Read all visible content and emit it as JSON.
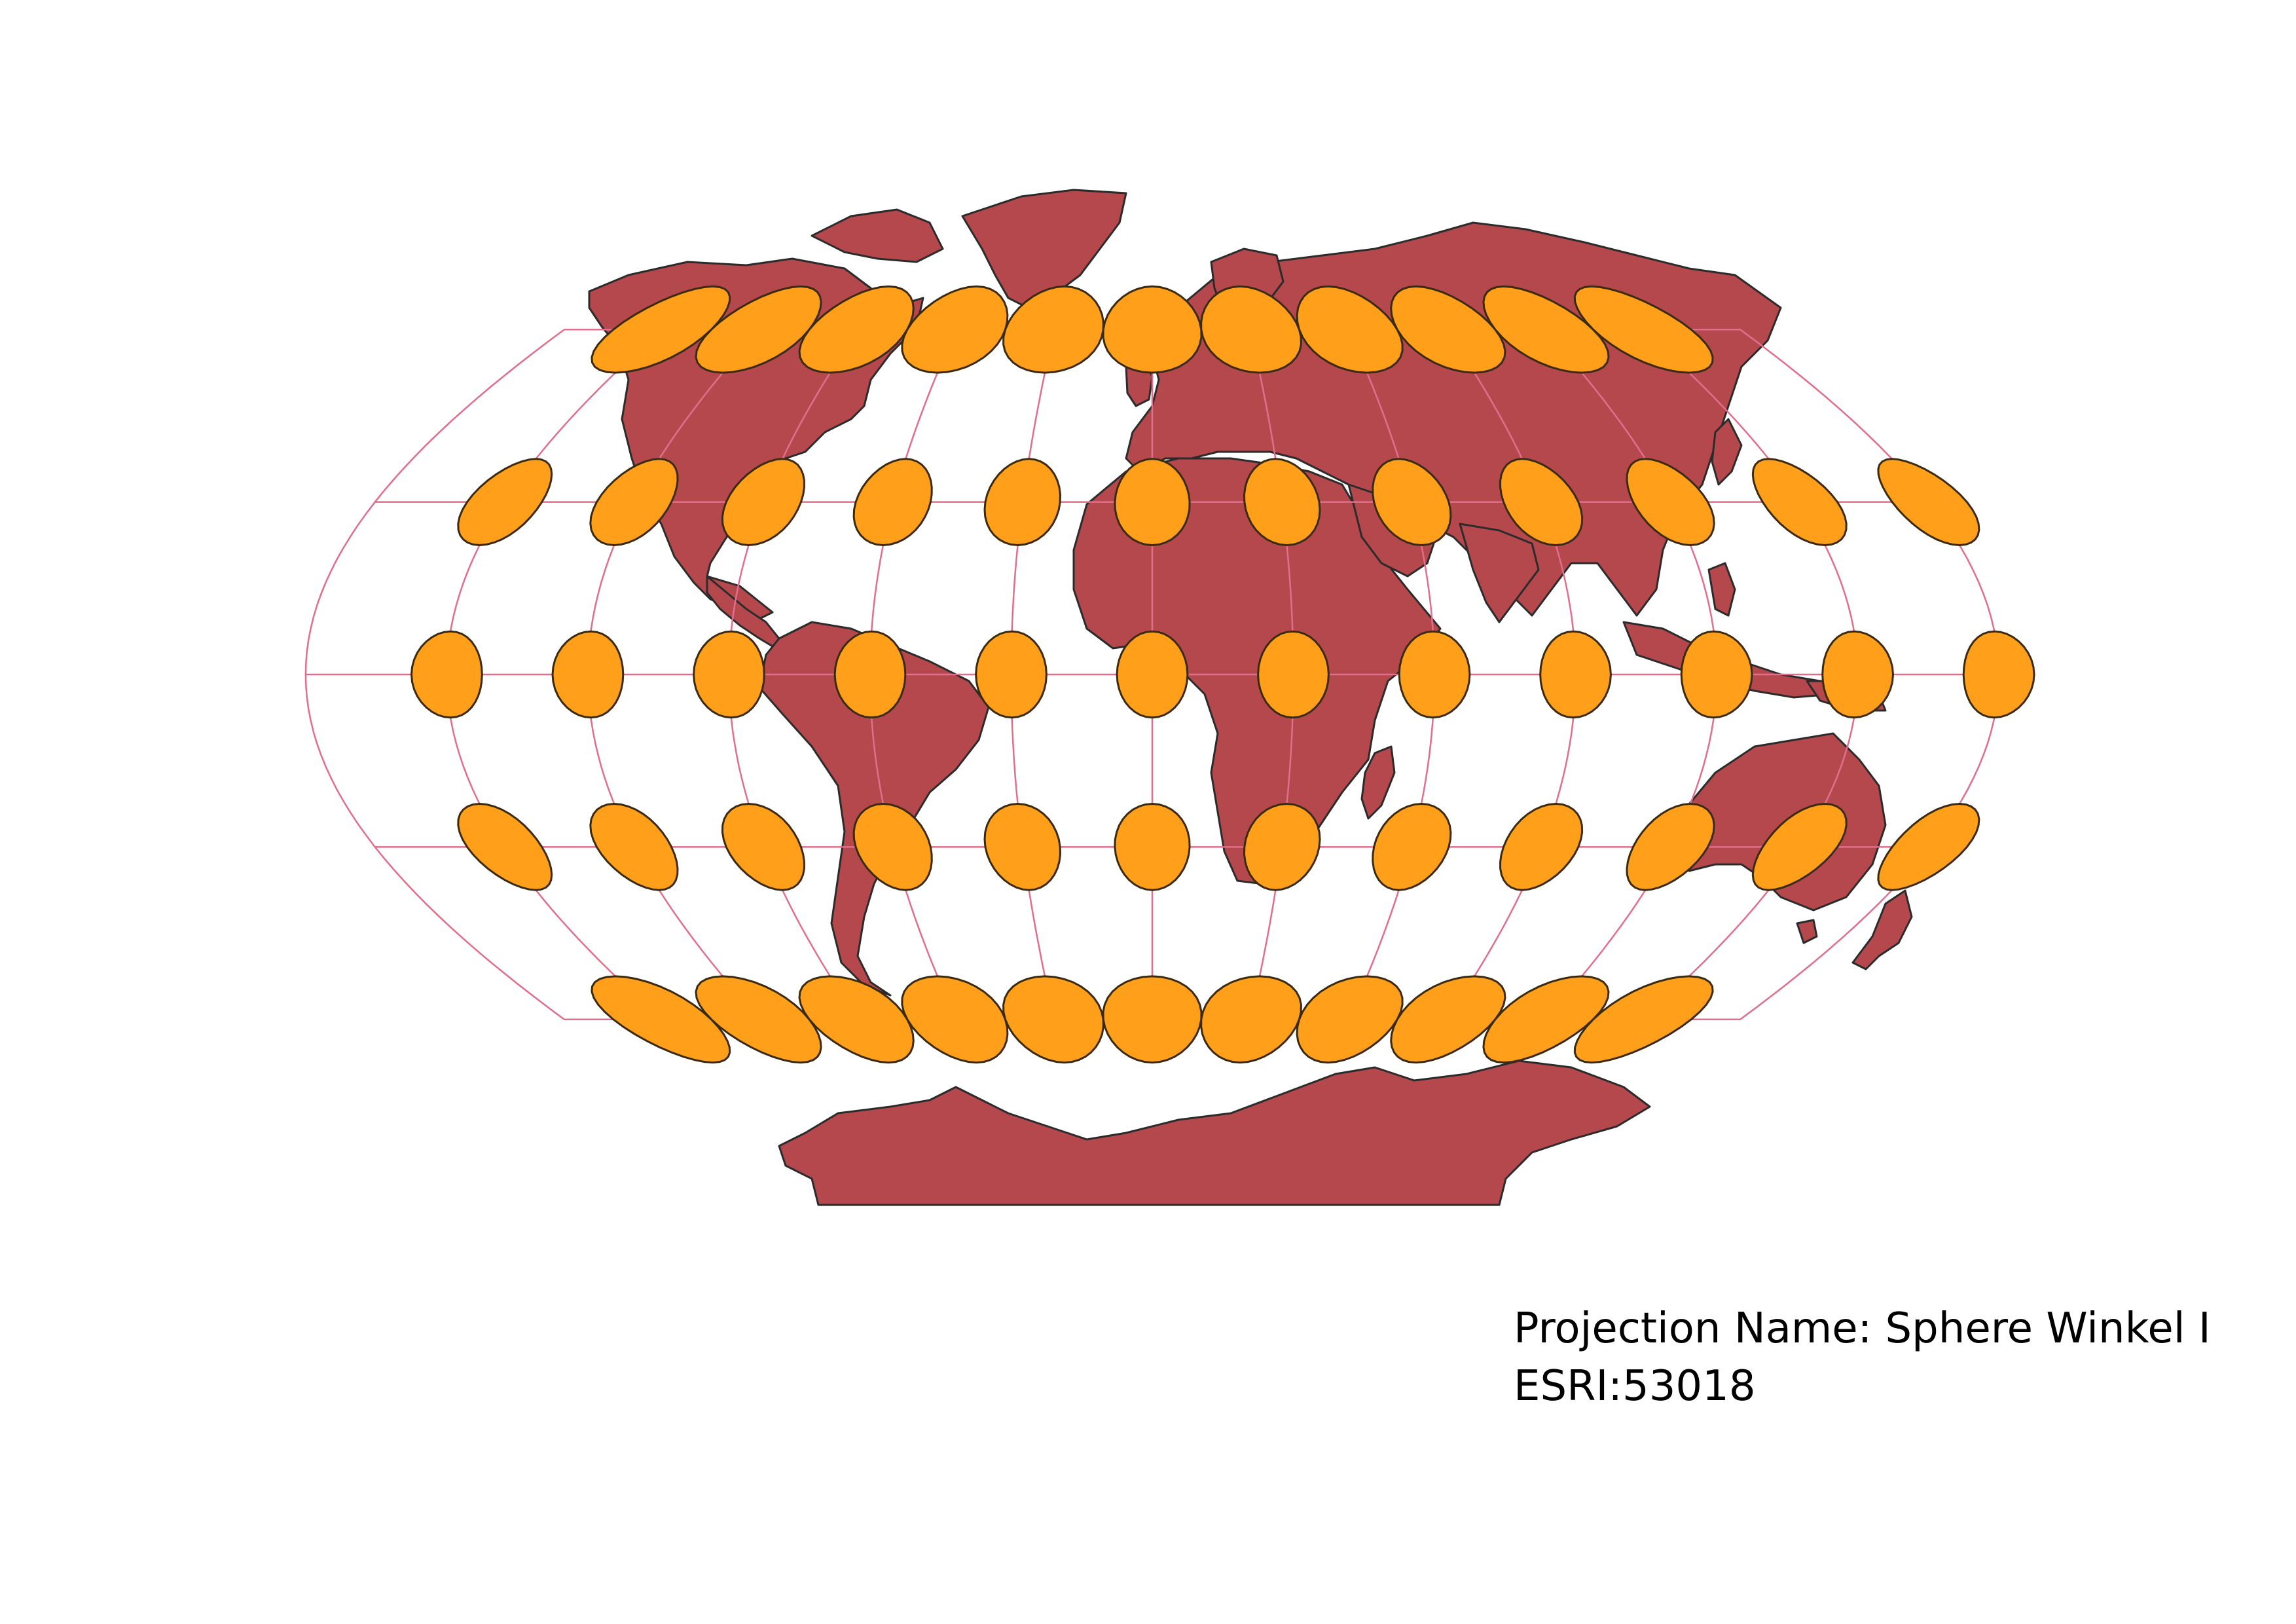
{
  "caption": {
    "projection_name": "Projection Name: Sphere Winkel I",
    "crs_code": "ESRI:53018"
  },
  "colors": {
    "background": "#ffffff",
    "land": "#b5484c",
    "land_stroke": "#2b2b2b",
    "graticule": "#e06e8c",
    "indicatrix_fill": "#ff9f1a",
    "indicatrix_stroke": "#3a2a10"
  },
  "map": {
    "projection": "Sphere Winkel I",
    "graticule": {
      "meridian_interval_deg": 30,
      "parallels_deg": [
        60,
        30,
        0,
        -30,
        -60
      ]
    },
    "tissot_indicatrix": {
      "latitudes_deg": [
        60,
        30,
        0,
        -30,
        -60
      ],
      "longitudes_deg": [
        -150,
        -120,
        -90,
        -60,
        -30,
        0,
        30,
        60,
        90,
        120,
        150,
        180
      ]
    }
  }
}
